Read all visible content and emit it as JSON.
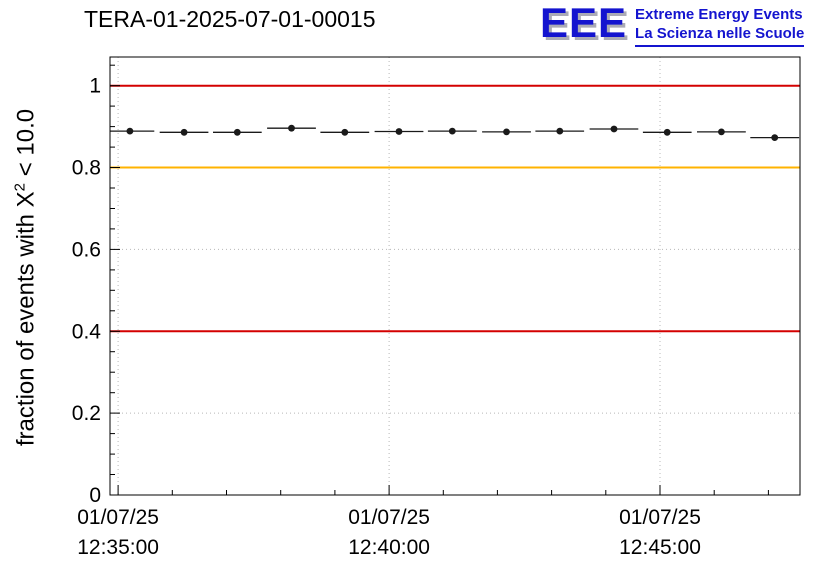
{
  "header": {
    "title": "TERA-01-2025-07-01-00015",
    "logo": {
      "text": "EEE",
      "line1": "Extreme Energy Events",
      "line2": "La Scienza nelle Scuole",
      "color": "#1414cf",
      "shadow_color": "#ababb5"
    }
  },
  "chart_data": {
    "type": "line",
    "title": "TERA-01-2025-07-01-00015",
    "ylabel": "fraction of events with X^2 < 10.0",
    "ylabel_parts": {
      "prefix": "fraction of events with X",
      "sup": "2",
      "suffix": " < 10.0"
    },
    "xlabel": "",
    "xlim_seconds": [
      -9,
      755
    ],
    "ylim": [
      0,
      1.07
    ],
    "yticks": [
      0,
      0.2,
      0.4,
      0.6,
      0.8,
      1
    ],
    "ytick_labels": [
      "0",
      "0.2",
      "0.4",
      "0.6",
      "0.8",
      "1"
    ],
    "y_minor_step": 0.05,
    "x_minor_step_seconds": 60,
    "grid": true,
    "grid_color": "#b8b8b8",
    "background": "#ffffff",
    "legend_position": "none",
    "xticks": [
      {
        "t": 0,
        "date": "01/07/25",
        "time": "12:35:00"
      },
      {
        "t": 300,
        "date": "01/07/25",
        "time": "12:40:00"
      },
      {
        "t": 600,
        "date": "01/07/25",
        "time": "12:45:00"
      }
    ],
    "reference_lines": [
      {
        "y": 1.0,
        "color": "#d40000",
        "width": 2
      },
      {
        "y": 0.8,
        "color": "#ffb300",
        "width": 2
      },
      {
        "y": 0.4,
        "color": "#d40000",
        "width": 2
      }
    ],
    "series": [
      {
        "name": "chi2-fraction",
        "marker_color": "#1a1a1a",
        "x_seconds": [
          13,
          73,
          132,
          192,
          251,
          311,
          370,
          430,
          489,
          549,
          608,
          668,
          727
        ],
        "x_halfwidth_seconds": 27,
        "values": [
          0.889,
          0.886,
          0.886,
          0.896,
          0.886,
          0.888,
          0.889,
          0.887,
          0.889,
          0.894,
          0.886,
          0.887,
          0.873
        ],
        "yerr": 0.004
      }
    ]
  }
}
